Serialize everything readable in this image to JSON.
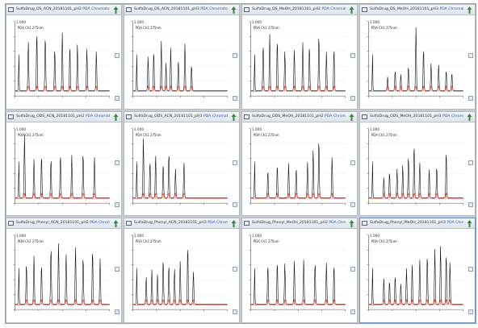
{
  "pdaLabel": "PDA Chromatogram",
  "panels": [
    {
      "title": "SulfaDrug_DS_ACN_20181101_pH2",
      "label": "PDA Ch1 275nm",
      "ymax": "1.000",
      "peaks": [
        [
          0.14,
          0.72
        ],
        [
          0.23,
          0.86
        ],
        [
          0.32,
          0.8
        ],
        [
          0.42,
          0.62
        ],
        [
          0.5,
          0.84
        ],
        [
          0.58,
          0.66
        ],
        [
          0.66,
          0.68
        ],
        [
          0.76,
          0.62
        ],
        [
          0.86,
          0.58
        ]
      ]
    },
    {
      "title": "SulfaDrug_DS_ACN_20181101_pH3",
      "label": "PDA Ch1 275nm",
      "ymax": "1.000",
      "peaks": [
        [
          0.16,
          0.5
        ],
        [
          0.22,
          0.58
        ],
        [
          0.3,
          0.72
        ],
        [
          0.35,
          0.4
        ],
        [
          0.4,
          0.62
        ],
        [
          0.48,
          0.45
        ],
        [
          0.55,
          0.68
        ],
        [
          0.62,
          0.38
        ]
      ]
    },
    {
      "title": "SulfaDrug_DS_MeOH_20181101_pH2",
      "label": "PDA Ch1 275nm",
      "ymax": "1.000",
      "peaks": [
        [
          0.13,
          0.68
        ],
        [
          0.2,
          0.82
        ],
        [
          0.28,
          0.74
        ],
        [
          0.36,
          0.58
        ],
        [
          0.46,
          0.6
        ],
        [
          0.55,
          0.7
        ],
        [
          0.62,
          0.66
        ],
        [
          0.72,
          0.82
        ],
        [
          0.8,
          0.56
        ],
        [
          0.88,
          0.62
        ]
      ]
    },
    {
      "title": "SulfaDrug_DS_MeOH_20181101_pH3",
      "label": "PDA Ch1 275nm",
      "ymax": "1.000",
      "peaks": [
        [
          0.2,
          0.2
        ],
        [
          0.28,
          0.3
        ],
        [
          0.34,
          0.24
        ],
        [
          0.42,
          0.36
        ],
        [
          0.5,
          0.92
        ],
        [
          0.58,
          0.62
        ],
        [
          0.66,
          0.4
        ],
        [
          0.74,
          0.38
        ],
        [
          0.82,
          0.3
        ],
        [
          0.88,
          0.26
        ]
      ]
    },
    {
      "title": "SulfaDrug_ODS_ACN_20181101_pH2",
      "label": "PDA Ch1 275nm",
      "ymax": "1.000",
      "peaks": [
        [
          0.1,
          0.92
        ],
        [
          0.2,
          0.56
        ],
        [
          0.28,
          0.62
        ],
        [
          0.38,
          0.58
        ],
        [
          0.48,
          0.64
        ],
        [
          0.6,
          0.62
        ],
        [
          0.72,
          0.66
        ],
        [
          0.84,
          0.6
        ]
      ]
    },
    {
      "title": "SulfaDrug_ODS_ACN_20181101_pH3",
      "label": "PDA Ch1 275nm",
      "ymax": "1.000",
      "peaks": [
        [
          0.11,
          0.88
        ],
        [
          0.18,
          0.54
        ],
        [
          0.24,
          0.62
        ],
        [
          0.32,
          0.5
        ],
        [
          0.38,
          0.66
        ],
        [
          0.45,
          0.42
        ],
        [
          0.54,
          0.52
        ]
      ]
    },
    {
      "title": "SulfaDrug_ODS_MeOH_20181101_pH2",
      "label": "PDA Ch1 275nm",
      "ymax": "1.000",
      "peaks": [
        [
          0.18,
          0.4
        ],
        [
          0.28,
          0.48
        ],
        [
          0.4,
          0.5
        ],
        [
          0.48,
          0.44
        ],
        [
          0.6,
          0.52
        ],
        [
          0.66,
          0.7
        ],
        [
          0.72,
          0.86
        ],
        [
          0.86,
          0.6
        ]
      ]
    },
    {
      "title": "SulfaDrug_ODS_MeOH_20181101_pH3",
      "label": "PDA Ch1 275nm",
      "ymax": "1.000",
      "peaks": [
        [
          0.16,
          0.3
        ],
        [
          0.22,
          0.38
        ],
        [
          0.3,
          0.42
        ],
        [
          0.36,
          0.48
        ],
        [
          0.42,
          0.62
        ],
        [
          0.48,
          0.78
        ],
        [
          0.54,
          0.52
        ],
        [
          0.64,
          0.42
        ],
        [
          0.72,
          0.46
        ],
        [
          0.82,
          0.68
        ]
      ]
    },
    {
      "title": "SulfaDrug_Phenyl_ACN_20181101_pH2",
      "label": "PDA Ch1 275nm",
      "ymax": "1.000",
      "peaks": [
        [
          0.12,
          0.6
        ],
        [
          0.2,
          0.7
        ],
        [
          0.28,
          0.58
        ],
        [
          0.38,
          0.84
        ],
        [
          0.46,
          0.9
        ],
        [
          0.54,
          0.74
        ],
        [
          0.64,
          0.84
        ],
        [
          0.72,
          0.7
        ],
        [
          0.82,
          0.8
        ],
        [
          0.9,
          0.66
        ]
      ]
    },
    {
      "title": "SulfaDrug_Phenyl_ACN_20181101_pH3",
      "label": "PDA Ch1 275nm",
      "ymax": "1.000",
      "peaks": [
        [
          0.14,
          0.4
        ],
        [
          0.2,
          0.5
        ],
        [
          0.26,
          0.44
        ],
        [
          0.32,
          0.66
        ],
        [
          0.38,
          0.58
        ],
        [
          0.44,
          0.52
        ],
        [
          0.5,
          0.62
        ],
        [
          0.58,
          0.86
        ],
        [
          0.64,
          0.48
        ]
      ]
    },
    {
      "title": "SulfaDrug_Phenyl_MeOH_20181101_pH2",
      "label": "PDA Ch1 275nm",
      "ymax": "1.000",
      "peaks": [
        [
          0.18,
          0.58
        ],
        [
          0.28,
          0.62
        ],
        [
          0.36,
          0.6
        ],
        [
          0.46,
          0.64
        ],
        [
          0.56,
          0.66
        ],
        [
          0.68,
          0.62
        ],
        [
          0.8,
          0.6
        ],
        [
          0.88,
          0.58
        ]
      ]
    },
    {
      "title": "SulfaDrug_Phenyl_MeOH_20181101_pH3",
      "label": "PDA Ch1 275nm",
      "ymax": "1.000",
      "peaks": [
        [
          0.16,
          0.38
        ],
        [
          0.22,
          0.34
        ],
        [
          0.28,
          0.42
        ],
        [
          0.34,
          0.3
        ],
        [
          0.4,
          0.52
        ],
        [
          0.46,
          0.58
        ],
        [
          0.54,
          0.66
        ],
        [
          0.62,
          0.72
        ],
        [
          0.7,
          0.8
        ],
        [
          0.76,
          0.86
        ],
        [
          0.82,
          0.74
        ],
        [
          0.86,
          0.62
        ]
      ]
    }
  ]
}
